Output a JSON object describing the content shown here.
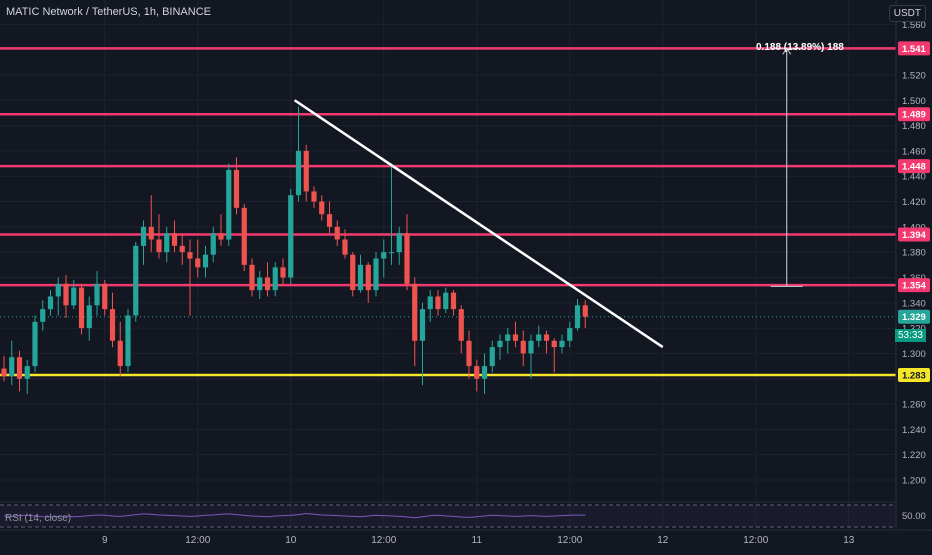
{
  "header": {
    "title": "MATIC Network / TetherUS, 1h, BINANCE",
    "axis_unit": "USDT"
  },
  "annotations": {
    "measure_label": "0.188 (13.89%) 188",
    "countdown": "53:33"
  },
  "indicator": {
    "label": "RSI (14, close)",
    "level_label": "50.00"
  },
  "colors": {
    "background": "#131722",
    "up": "#26a69a",
    "down": "#ef5350",
    "resistance": "#f23a70",
    "support": "#f5e629",
    "trendline": "#ffffff",
    "rsi": "#7e57c2"
  },
  "chart_data": {
    "type": "candlestick",
    "y_axis": {
      "ylim": [
        1.18,
        1.575
      ],
      "ticks": [
        "1.200",
        "1.220",
        "1.240",
        "1.260",
        "1.280",
        "1.300",
        "1.320",
        "1.340",
        "1.360",
        "1.380",
        "1.400",
        "1.420",
        "1.440",
        "1.460",
        "1.480",
        "1.500",
        "1.520",
        "1.540",
        "1.560"
      ]
    },
    "x_axis": {
      "ticks": [
        {
          "label": "9",
          "bar": 13
        },
        {
          "label": "12:00",
          "bar": 25
        },
        {
          "label": "10",
          "bar": 37
        },
        {
          "label": "12:00",
          "bar": 49
        },
        {
          "label": "11",
          "bar": 61
        },
        {
          "label": "12:00",
          "bar": 73
        },
        {
          "label": "12",
          "bar": 85
        },
        {
          "label": "12:00",
          "bar": 97
        },
        {
          "label": "13",
          "bar": 109
        }
      ]
    },
    "horizontal_levels": [
      {
        "value": 1.541,
        "label": "1.541",
        "kind": "resistance"
      },
      {
        "value": 1.489,
        "label": "1.489",
        "kind": "resistance"
      },
      {
        "value": 1.448,
        "label": "1.448",
        "kind": "resistance"
      },
      {
        "value": 1.394,
        "label": "1.394",
        "kind": "resistance"
      },
      {
        "value": 1.354,
        "label": "1.354",
        "kind": "resistance"
      },
      {
        "value": 1.283,
        "label": "1.283",
        "kind": "support"
      }
    ],
    "last_price": {
      "value": 1.329,
      "label": "1.329"
    },
    "trendline": {
      "from": {
        "bar": 37.5,
        "price": 1.5
      },
      "to": {
        "bar": 85,
        "price": 1.305
      }
    },
    "measure": {
      "bar": 101,
      "from": 1.353,
      "to": 1.541
    },
    "ohlc": [
      [
        1.288,
        1.298,
        1.278,
        1.282
      ],
      [
        1.282,
        1.31,
        1.275,
        1.297
      ],
      [
        1.297,
        1.302,
        1.27,
        1.28
      ],
      [
        1.28,
        1.295,
        1.268,
        1.29
      ],
      [
        1.29,
        1.33,
        1.285,
        1.325
      ],
      [
        1.325,
        1.342,
        1.318,
        1.335
      ],
      [
        1.335,
        1.35,
        1.33,
        1.345
      ],
      [
        1.345,
        1.36,
        1.33,
        1.355
      ],
      [
        1.355,
        1.362,
        1.328,
        1.338
      ],
      [
        1.338,
        1.358,
        1.335,
        1.352
      ],
      [
        1.352,
        1.355,
        1.315,
        1.32
      ],
      [
        1.32,
        1.345,
        1.31,
        1.338
      ],
      [
        1.338,
        1.365,
        1.33,
        1.355
      ],
      [
        1.355,
        1.358,
        1.33,
        1.335
      ],
      [
        1.335,
        1.348,
        1.305,
        1.31
      ],
      [
        1.31,
        1.325,
        1.282,
        1.29
      ],
      [
        1.29,
        1.335,
        1.285,
        1.33
      ],
      [
        1.33,
        1.388,
        1.325,
        1.385
      ],
      [
        1.385,
        1.405,
        1.37,
        1.4
      ],
      [
        1.4,
        1.425,
        1.38,
        1.39
      ],
      [
        1.39,
        1.41,
        1.375,
        1.38
      ],
      [
        1.38,
        1.4,
        1.372,
        1.395
      ],
      [
        1.395,
        1.405,
        1.38,
        1.385
      ],
      [
        1.385,
        1.395,
        1.37,
        1.38
      ],
      [
        1.38,
        1.39,
        1.33,
        1.375
      ],
      [
        1.375,
        1.39,
        1.36,
        1.368
      ],
      [
        1.368,
        1.385,
        1.36,
        1.378
      ],
      [
        1.378,
        1.4,
        1.372,
        1.395
      ],
      [
        1.395,
        1.41,
        1.385,
        1.39
      ],
      [
        1.39,
        1.45,
        1.385,
        1.445
      ],
      [
        1.445,
        1.455,
        1.41,
        1.415
      ],
      [
        1.415,
        1.418,
        1.365,
        1.37
      ],
      [
        1.37,
        1.375,
        1.345,
        1.35
      ],
      [
        1.35,
        1.365,
        1.343,
        1.36
      ],
      [
        1.36,
        1.372,
        1.345,
        1.35
      ],
      [
        1.35,
        1.372,
        1.345,
        1.368
      ],
      [
        1.368,
        1.375,
        1.355,
        1.36
      ],
      [
        1.36,
        1.43,
        1.355,
        1.425
      ],
      [
        1.425,
        1.495,
        1.42,
        1.46
      ],
      [
        1.46,
        1.465,
        1.42,
        1.428
      ],
      [
        1.428,
        1.432,
        1.415,
        1.42
      ],
      [
        1.42,
        1.425,
        1.405,
        1.41
      ],
      [
        1.41,
        1.42,
        1.395,
        1.4
      ],
      [
        1.4,
        1.405,
        1.385,
        1.39
      ],
      [
        1.39,
        1.398,
        1.375,
        1.378
      ],
      [
        1.378,
        1.38,
        1.345,
        1.35
      ],
      [
        1.35,
        1.378,
        1.348,
        1.37
      ],
      [
        1.37,
        1.372,
        1.34,
        1.35
      ],
      [
        1.35,
        1.38,
        1.345,
        1.375
      ],
      [
        1.375,
        1.39,
        1.36,
        1.38
      ],
      [
        1.38,
        1.45,
        1.37,
        1.38
      ],
      [
        1.38,
        1.4,
        1.37,
        1.395
      ],
      [
        1.395,
        1.41,
        1.35,
        1.355
      ],
      [
        1.355,
        1.36,
        1.29,
        1.31
      ],
      [
        1.31,
        1.34,
        1.275,
        1.335
      ],
      [
        1.335,
        1.35,
        1.325,
        1.345
      ],
      [
        1.345,
        1.35,
        1.33,
        1.335
      ],
      [
        1.335,
        1.352,
        1.332,
        1.348
      ],
      [
        1.348,
        1.35,
        1.33,
        1.335
      ],
      [
        1.335,
        1.338,
        1.3,
        1.31
      ],
      [
        1.31,
        1.318,
        1.28,
        1.29
      ],
      [
        1.29,
        1.295,
        1.27,
        1.28
      ],
      [
        1.28,
        1.3,
        1.268,
        1.29
      ],
      [
        1.29,
        1.31,
        1.285,
        1.305
      ],
      [
        1.305,
        1.315,
        1.295,
        1.31
      ],
      [
        1.31,
        1.32,
        1.3,
        1.315
      ],
      [
        1.315,
        1.325,
        1.305,
        1.31
      ],
      [
        1.31,
        1.318,
        1.29,
        1.3
      ],
      [
        1.3,
        1.315,
        1.28,
        1.31
      ],
      [
        1.31,
        1.322,
        1.305,
        1.315
      ],
      [
        1.315,
        1.318,
        1.3,
        1.31
      ],
      [
        1.31,
        1.312,
        1.285,
        1.305
      ],
      [
        1.305,
        1.315,
        1.3,
        1.31
      ],
      [
        1.31,
        1.325,
        1.305,
        1.32
      ],
      [
        1.32,
        1.343,
        1.318,
        1.338
      ],
      [
        1.338,
        1.342,
        1.32,
        1.329
      ]
    ],
    "rsi": [
      50,
      49,
      51,
      52,
      50,
      48,
      47,
      49,
      50,
      48,
      49,
      51,
      53,
      52,
      50,
      49,
      51,
      54,
      56,
      55,
      53,
      52,
      51,
      50,
      49,
      50,
      52,
      53,
      55,
      56,
      54,
      52,
      50,
      49,
      48,
      50,
      51,
      52,
      54,
      57,
      55,
      53,
      52,
      51,
      50,
      49,
      48,
      50,
      52,
      51,
      50,
      49,
      47,
      45,
      48,
      51,
      52,
      50,
      49,
      47,
      46,
      48,
      50,
      52,
      51,
      50,
      49,
      50,
      51,
      50,
      49,
      50,
      51,
      52,
      53,
      52
    ]
  }
}
